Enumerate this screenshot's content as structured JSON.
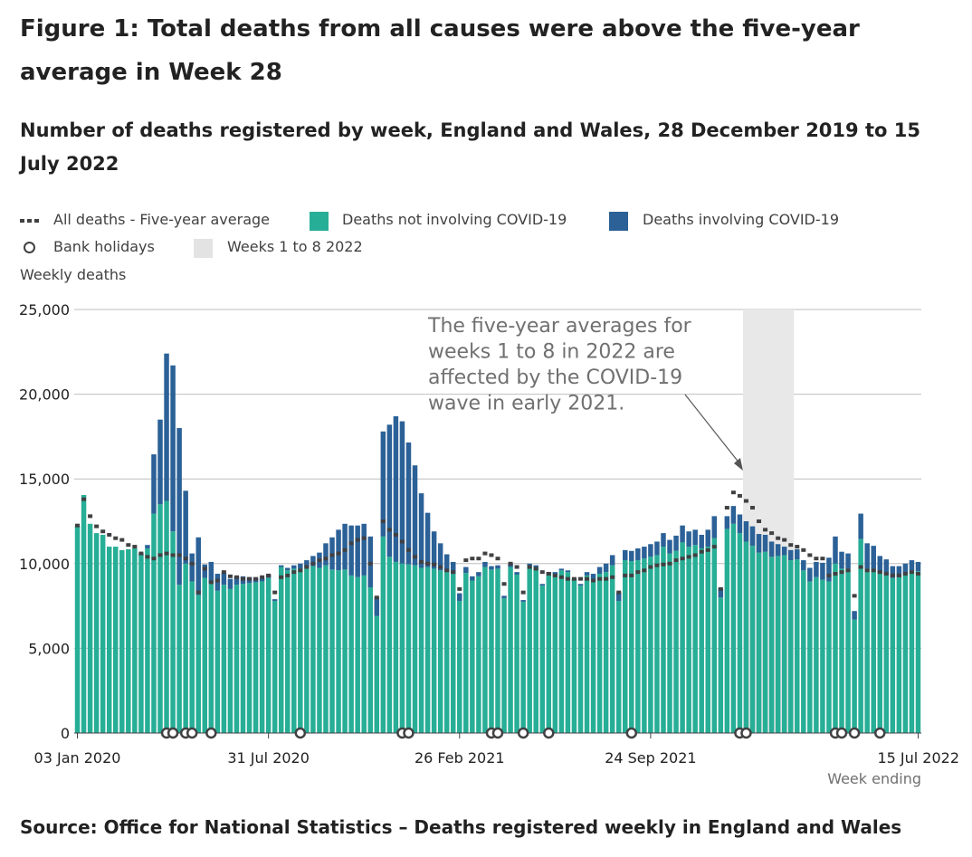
{
  "title": "Figure 1: Total deaths from all causes were above the five-year average in Week 28",
  "subtitle": "Number of deaths registered by week, England and Wales, 28 December 2019 to 15 July 2022",
  "source": "Source: Office for National Statistics – Deaths registered weekly in England and Wales",
  "colors": {
    "non_covid": "#27ae96",
    "covid": "#2b6197",
    "average": "#414042",
    "gridline": "#bebebe",
    "shading": "#e8e8e8",
    "annotation": "#707070"
  },
  "legend": {
    "average": "All deaths - Five-year average",
    "non_covid": "Deaths not involving COVID-19",
    "covid": "Deaths involving COVID-19",
    "bank_holidays": "Bank holidays",
    "weeks_shaded": "Weeks 1 to 8 2022"
  },
  "chart_data": {
    "type": "bar",
    "stacked": true,
    "x": [
      "03 Jan 2020",
      "10 Jan 2020",
      "17 Jan 2020",
      "24 Jan 2020",
      "31 Jan 2020",
      "07 Feb 2020",
      "14 Feb 2020",
      "21 Feb 2020",
      "28 Feb 2020",
      "06 Mar 2020",
      "13 Mar 2020",
      "20 Mar 2020",
      "27 Mar 2020",
      "03 Apr 2020",
      "10 Apr 2020",
      "17 Apr 2020",
      "24 Apr 2020",
      "01 May 2020",
      "08 May 2020",
      "15 May 2020",
      "22 May 2020",
      "29 May 2020",
      "05 Jun 2020",
      "12 Jun 2020",
      "19 Jun 2020",
      "26 Jun 2020",
      "03 Jul 2020",
      "10 Jul 2020",
      "17 Jul 2020",
      "24 Jul 2020",
      "31 Jul 2020",
      "07 Aug 2020",
      "14 Aug 2020",
      "21 Aug 2020",
      "28 Aug 2020",
      "04 Sep 2020",
      "11 Sep 2020",
      "18 Sep 2020",
      "25 Sep 2020",
      "02 Oct 2020",
      "09 Oct 2020",
      "16 Oct 2020",
      "23 Oct 2020",
      "30 Oct 2020",
      "06 Nov 2020",
      "13 Nov 2020",
      "20 Nov 2020",
      "27 Nov 2020",
      "04 Dec 2020",
      "11 Dec 2020",
      "18 Dec 2020",
      "25 Dec 2020",
      "01 Jan 2021",
      "08 Jan 2021",
      "15 Jan 2021",
      "22 Jan 2021",
      "29 Jan 2021",
      "05 Feb 2021",
      "12 Feb 2021",
      "19 Feb 2021",
      "26 Feb 2021",
      "05 Mar 2021",
      "12 Mar 2021",
      "19 Mar 2021",
      "26 Mar 2021",
      "02 Apr 2021",
      "09 Apr 2021",
      "16 Apr 2021",
      "23 Apr 2021",
      "30 Apr 2021",
      "07 May 2021",
      "14 May 2021",
      "21 May 2021",
      "28 May 2021",
      "04 Jun 2021",
      "11 Jun 2021",
      "18 Jun 2021",
      "25 Jun 2021",
      "02 Jul 2021",
      "09 Jul 2021",
      "16 Jul 2021",
      "23 Jul 2021",
      "30 Jul 2021",
      "06 Aug 2021",
      "13 Aug 2021",
      "20 Aug 2021",
      "27 Aug 2021",
      "03 Sep 2021",
      "10 Sep 2021",
      "17 Sep 2021",
      "24 Sep 2021",
      "01 Oct 2021",
      "08 Oct 2021",
      "15 Oct 2021",
      "22 Oct 2021",
      "29 Oct 2021",
      "05 Nov 2021",
      "12 Nov 2021",
      "19 Nov 2021",
      "26 Nov 2021",
      "03 Dec 2021",
      "10 Dec 2021",
      "17 Dec 2021",
      "24 Dec 2021",
      "31 Dec 2021",
      "07 Jan 2022",
      "14 Jan 2022",
      "21 Jan 2022",
      "28 Jan 2022",
      "04 Feb 2022",
      "11 Feb 2022",
      "18 Feb 2022",
      "25 Feb 2022",
      "04 Mar 2022",
      "11 Mar 2022",
      "18 Mar 2022",
      "25 Mar 2022",
      "01 Apr 2022",
      "08 Apr 2022",
      "15 Apr 2022",
      "22 Apr 2022",
      "29 Apr 2022",
      "06 May 2022",
      "13 May 2022",
      "20 May 2022",
      "27 May 2022",
      "03 Jun 2022",
      "10 Jun 2022",
      "17 Jun 2022",
      "24 Jun 2022",
      "01 Jul 2022",
      "08 Jul 2022",
      "15 Jul 2022"
    ],
    "series": [
      {
        "name": "Deaths not involving COVID-19",
        "values": [
          12250,
          14050,
          12350,
          11800,
          11700,
          11000,
          11000,
          10800,
          10850,
          10900,
          10500,
          10900,
          12950,
          13500,
          13700,
          11900,
          8750,
          10000,
          8950,
          8150,
          9150,
          8800,
          8400,
          8750,
          8500,
          8750,
          8800,
          8850,
          8900,
          8950,
          9150,
          7800,
          9800,
          9600,
          9700,
          9700,
          9800,
          9850,
          9750,
          9900,
          9650,
          9600,
          9650,
          9300,
          9200,
          9300,
          8600,
          6900,
          11600,
          10400,
          10100,
          10000,
          9950,
          9900,
          9750,
          9800,
          9700,
          9600,
          9500,
          9400,
          7800,
          9450,
          9000,
          9250,
          9800,
          9650,
          9700,
          7950,
          9800,
          9350,
          7750,
          9900,
          9800,
          8700,
          9400,
          9400,
          9600,
          9500,
          9000,
          8700,
          9300,
          9100,
          9400,
          9500,
          9900,
          7800,
          10200,
          10150,
          10200,
          10300,
          10400,
          10500,
          11000,
          10600,
          10750,
          11250,
          11000,
          11100,
          10900,
          11000,
          11500,
          8000,
          12050,
          12350,
          11800,
          11300,
          11050,
          10650,
          10700,
          10400,
          10450,
          10500,
          10200,
          10250,
          9600,
          8950,
          9200,
          9050,
          8950,
          10000,
          9700,
          9700,
          6700,
          11450,
          9700,
          9700,
          9450,
          9350,
          9150,
          9200,
          9400,
          9600,
          9550
        ]
      },
      {
        "name": "Deaths involving COVID-19",
        "values": [
          0,
          0,
          0,
          0,
          0,
          0,
          0,
          0,
          0,
          0,
          100,
          200,
          3500,
          5000,
          8700,
          9800,
          9250,
          4300,
          1650,
          3400,
          800,
          1300,
          1000,
          700,
          600,
          500,
          450,
          350,
          250,
          200,
          200,
          100,
          100,
          150,
          200,
          300,
          400,
          600,
          900,
          1300,
          1900,
          2400,
          2700,
          2950,
          3050,
          3050,
          3000,
          1100,
          6200,
          7800,
          8600,
          8400,
          7200,
          5900,
          4400,
          3200,
          2200,
          1600,
          1050,
          700,
          450,
          350,
          250,
          250,
          300,
          200,
          200,
          150,
          200,
          150,
          100,
          100,
          100,
          100,
          100,
          100,
          100,
          100,
          100,
          100,
          200,
          300,
          400,
          500,
          600,
          500,
          600,
          600,
          700,
          700,
          750,
          800,
          800,
          800,
          900,
          1000,
          900,
          900,
          800,
          1000,
          1300,
          550,
          750,
          1050,
          1100,
          1200,
          1150,
          1100,
          1000,
          900,
          700,
          500,
          600,
          600,
          600,
          800,
          900,
          1000,
          1400,
          1600,
          1000,
          900,
          500,
          1500,
          1500,
          1350,
          1000,
          900,
          700,
          650,
          600,
          600,
          550
        ]
      },
      {
        "name": "All deaths - Five-year average",
        "type": "line-dashed",
        "values": [
          12250,
          13800,
          12800,
          12200,
          11900,
          11700,
          11500,
          11400,
          11100,
          11000,
          10600,
          10400,
          10300,
          10500,
          10600,
          10500,
          10500,
          10300,
          10000,
          8300,
          9700,
          8900,
          9000,
          9500,
          9250,
          9200,
          9100,
          9100,
          9100,
          9200,
          9300,
          8300,
          9200,
          9300,
          9500,
          9600,
          9800,
          10000,
          10200,
          10300,
          10500,
          10600,
          10800,
          11200,
          11400,
          11500,
          10000,
          8000,
          12500,
          12000,
          11700,
          11300,
          10800,
          10400,
          10100,
          10000,
          9950,
          9800,
          9600,
          9500,
          8500,
          10200,
          10300,
          10300,
          10600,
          10500,
          10300,
          8800,
          10000,
          9800,
          8300,
          9800,
          9700,
          9500,
          9400,
          9300,
          9200,
          9100,
          9100,
          9100,
          9100,
          9000,
          9100,
          9100,
          9200,
          8300,
          9300,
          9300,
          9500,
          9600,
          9800,
          9900,
          9950,
          10000,
          10200,
          10300,
          10400,
          10500,
          10700,
          10800,
          11000,
          8500,
          13300,
          14200,
          14000,
          13700,
          13300,
          12500,
          12000,
          11800,
          11500,
          11400,
          11100,
          11000,
          10800,
          10500,
          10300,
          10300,
          9300,
          9400,
          9500,
          9600,
          8100,
          9800,
          9600,
          9600,
          9500,
          9400,
          9300,
          9300,
          9400,
          9500,
          9400
        ]
      }
    ],
    "bank_holiday_weeks": [
      "10 Apr 2020",
      "17 Apr 2020",
      "01 May 2020",
      "08 May 2020",
      "29 May 2020",
      "04 Sep 2020",
      "25 Dec 2020",
      "01 Jan 2021",
      "02 Apr 2021",
      "09 Apr 2021",
      "07 May 2021",
      "04 Jun 2021",
      "03 Sep 2021",
      "31 Dec 2021",
      "07 Jan 2022",
      "15 Apr 2022",
      "22 Apr 2022",
      "06 May 2022",
      "03 Jun 2022"
    ],
    "shaded_range": [
      "07 Jan 2022",
      "25 Feb 2022"
    ],
    "annotation": {
      "lines": [
        "The five-year averages for",
        "weeks 1 to 8 in 2022 are",
        "affected by the COVID-19",
        "wave in early 2021."
      ],
      "points_to": "07 Jan 2022"
    },
    "ylabel": "Weekly deaths",
    "xlabel": "Week ending",
    "ylim": [
      0,
      25000
    ],
    "y_ticks": [
      0,
      5000,
      10000,
      15000,
      20000,
      25000
    ],
    "y_tick_labels": [
      "0",
      "5,000",
      "10,000",
      "15,000",
      "20,000",
      "25,000"
    ],
    "x_tick_labels": [
      "03 Jan 2020",
      "31 Jul 2020",
      "26 Feb 2021",
      "24 Sep 2021",
      "15 Jul 2022"
    ],
    "grid": true
  }
}
